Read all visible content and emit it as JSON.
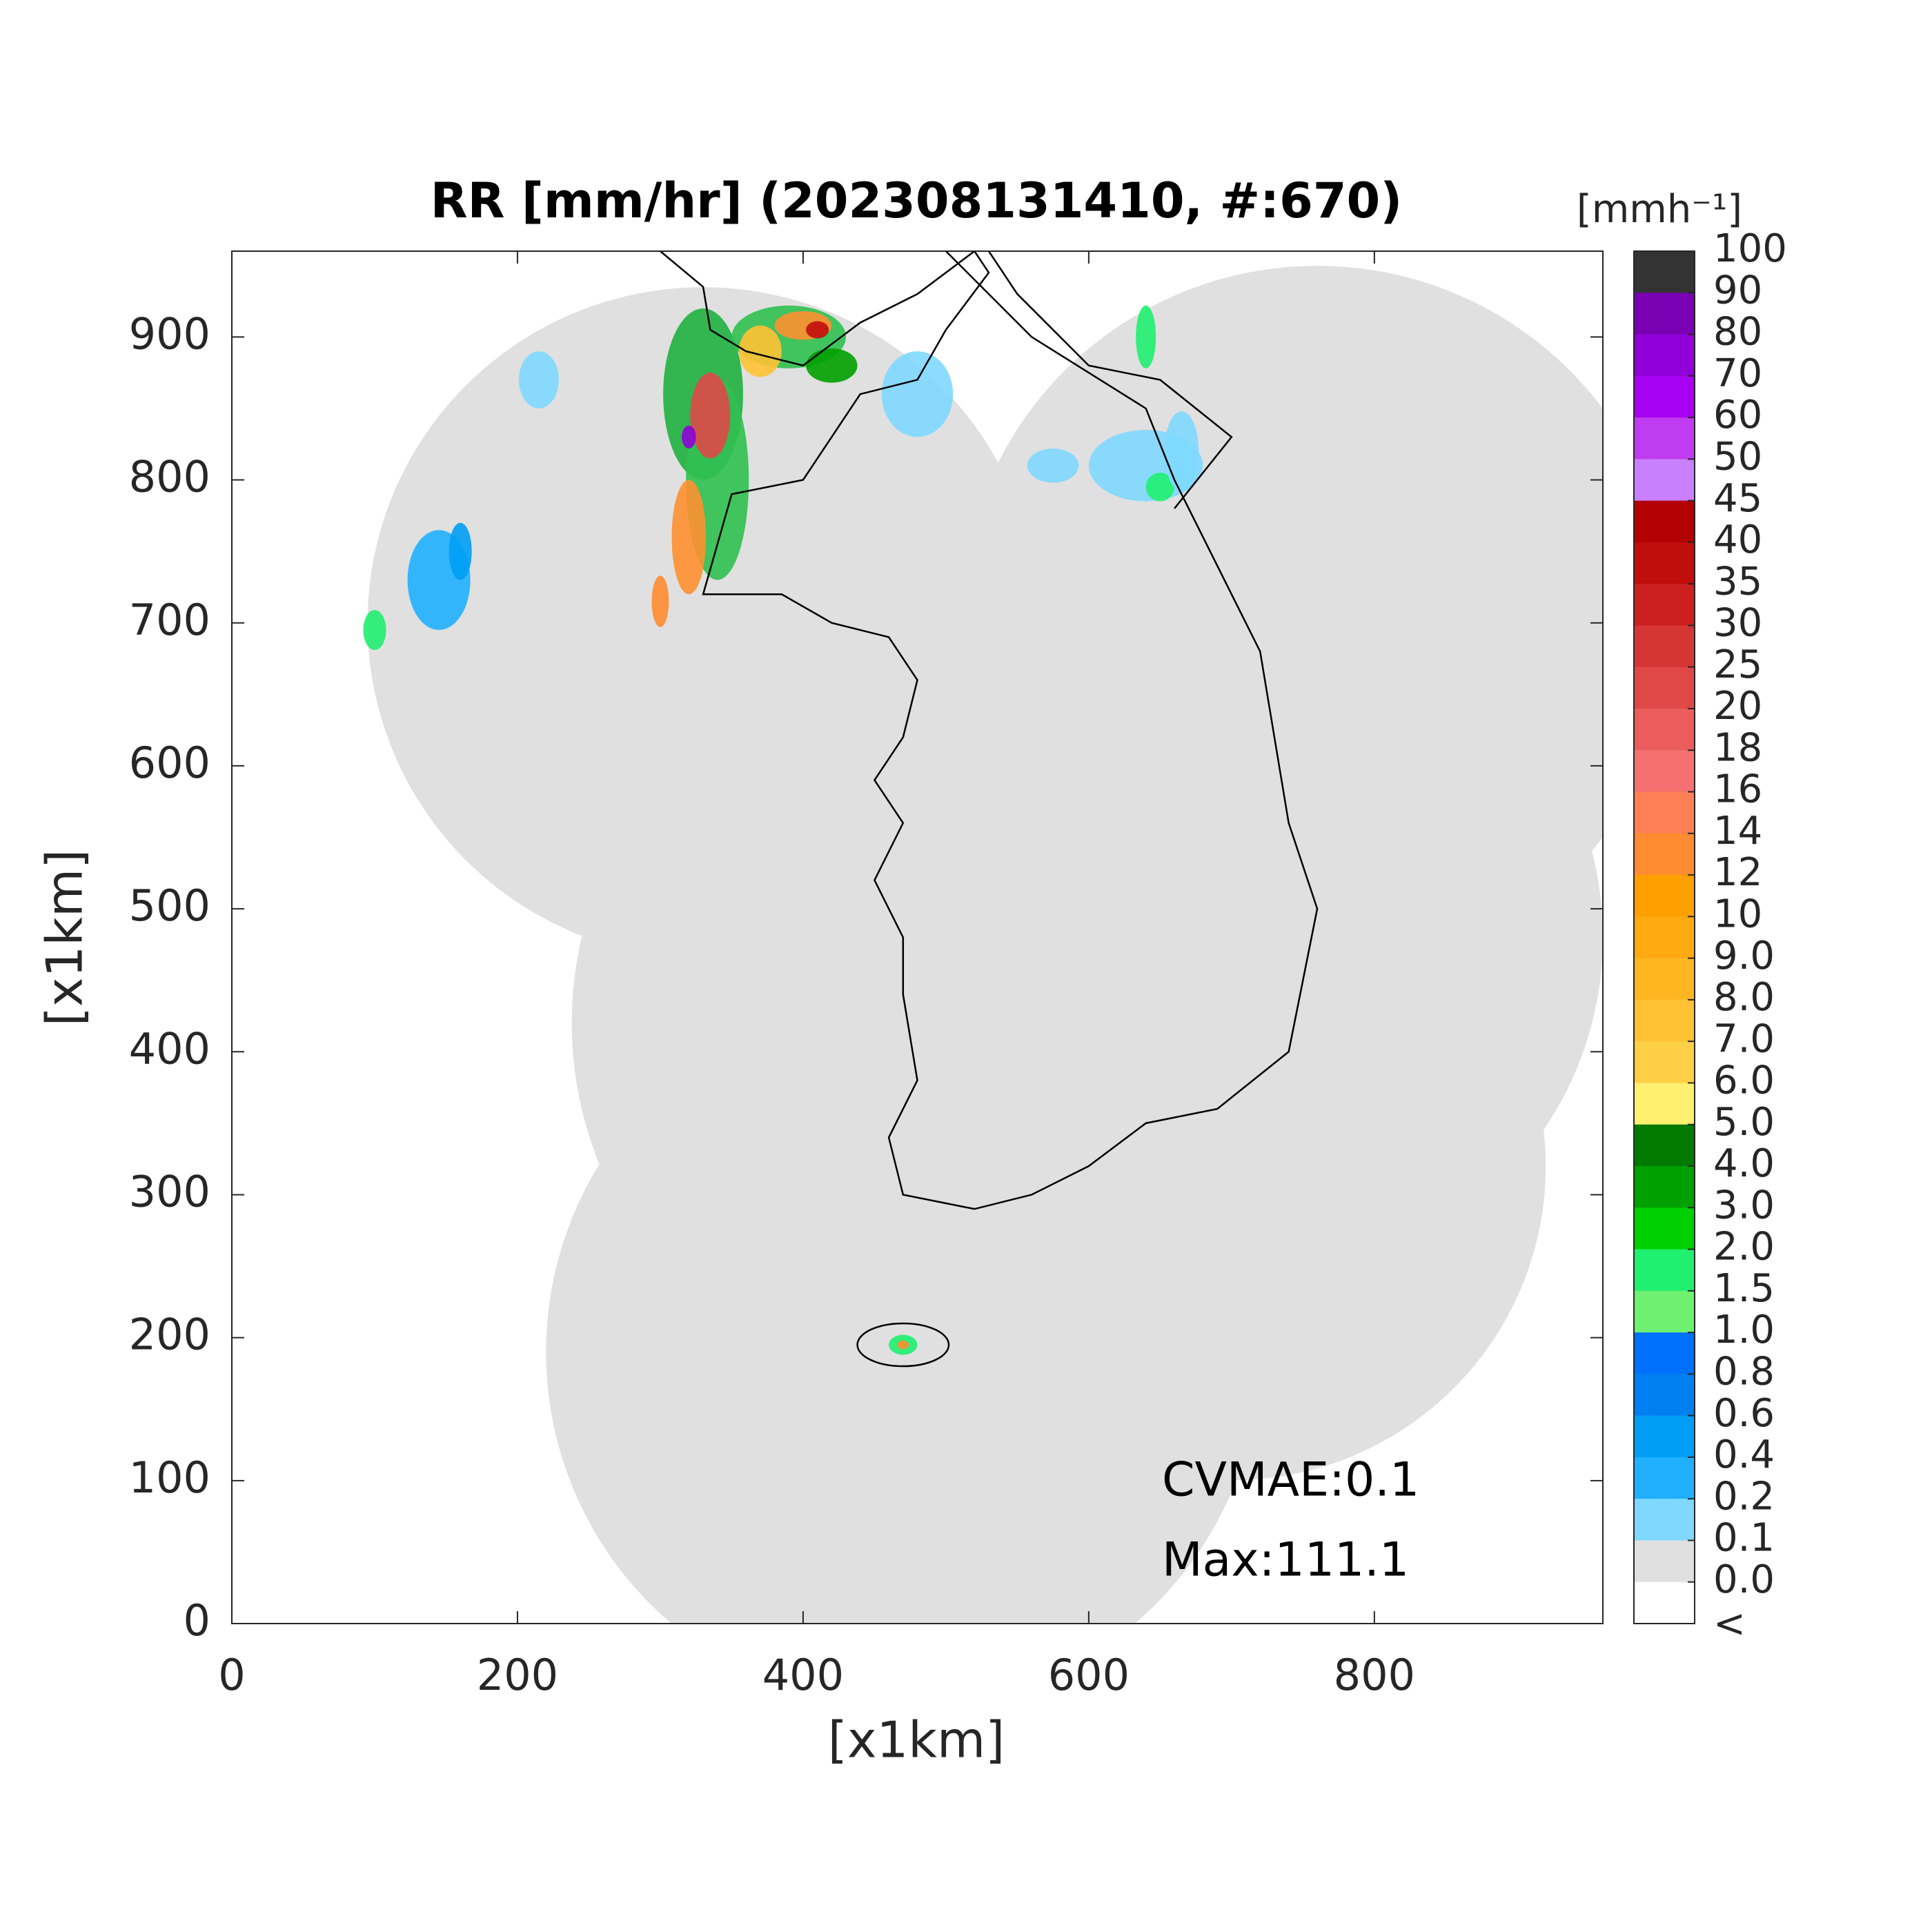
{
  "chart_data": {
    "type": "map",
    "title": "RR [mm/hr] (202308131410, #:670)",
    "x_label": "[x1km]",
    "y_label": "[x1km]",
    "xlim": [
      0,
      960
    ],
    "ylim": [
      0,
      960
    ],
    "xticks": [
      0,
      200,
      400,
      600,
      800
    ],
    "yticks": [
      0,
      100,
      200,
      300,
      400,
      500,
      600,
      700,
      800,
      900
    ],
    "annotations": [
      "CVMAE:0.1",
      "Max:111.1"
    ],
    "colorbar": {
      "label": "[mmh⁻¹]",
      "ticks": [
        100,
        90,
        80,
        70,
        60,
        50,
        45,
        40,
        35,
        30,
        25,
        20,
        18,
        16,
        14,
        12,
        10,
        {
          "value": 9,
          "label": "9.0"
        },
        {
          "value": 8,
          "label": "8.0"
        },
        {
          "value": 7,
          "label": "7.0"
        },
        {
          "value": 6,
          "label": "6.0"
        },
        {
          "value": 5,
          "label": "5.0"
        },
        {
          "value": 4,
          "label": "4.0"
        },
        {
          "value": 3,
          "label": "3.0"
        },
        {
          "value": 2,
          "label": "2.0"
        },
        1.5,
        {
          "value": 1,
          "label": "1.0"
        },
        0.8,
        0.6,
        0.4,
        0.2,
        0.1,
        {
          "value": 0,
          "label": "0.0"
        }
      ],
      "below_label": "<",
      "colors": [
        "#333333",
        "#7a00b4",
        "#9100d8",
        "#a800f0",
        "#c03cf0",
        "#c880ff",
        "#b30000",
        "#c20d0d",
        "#cc2020",
        "#d63535",
        "#e04848",
        "#eb5c5c",
        "#f57070",
        "#ff8055",
        "#ff8c30",
        "#ffa000",
        "#ffaa10",
        "#ffb620",
        "#ffc235",
        "#ffd045",
        "#fff070",
        "#007a00",
        "#00a000",
        "#00d000",
        "#20f070",
        "#70f070",
        "#0070ff",
        "#0080f0",
        "#009ff5",
        "#20b0ff",
        "#80d8ff",
        "#e0e0e0",
        "#ffffff"
      ]
    }
  }
}
